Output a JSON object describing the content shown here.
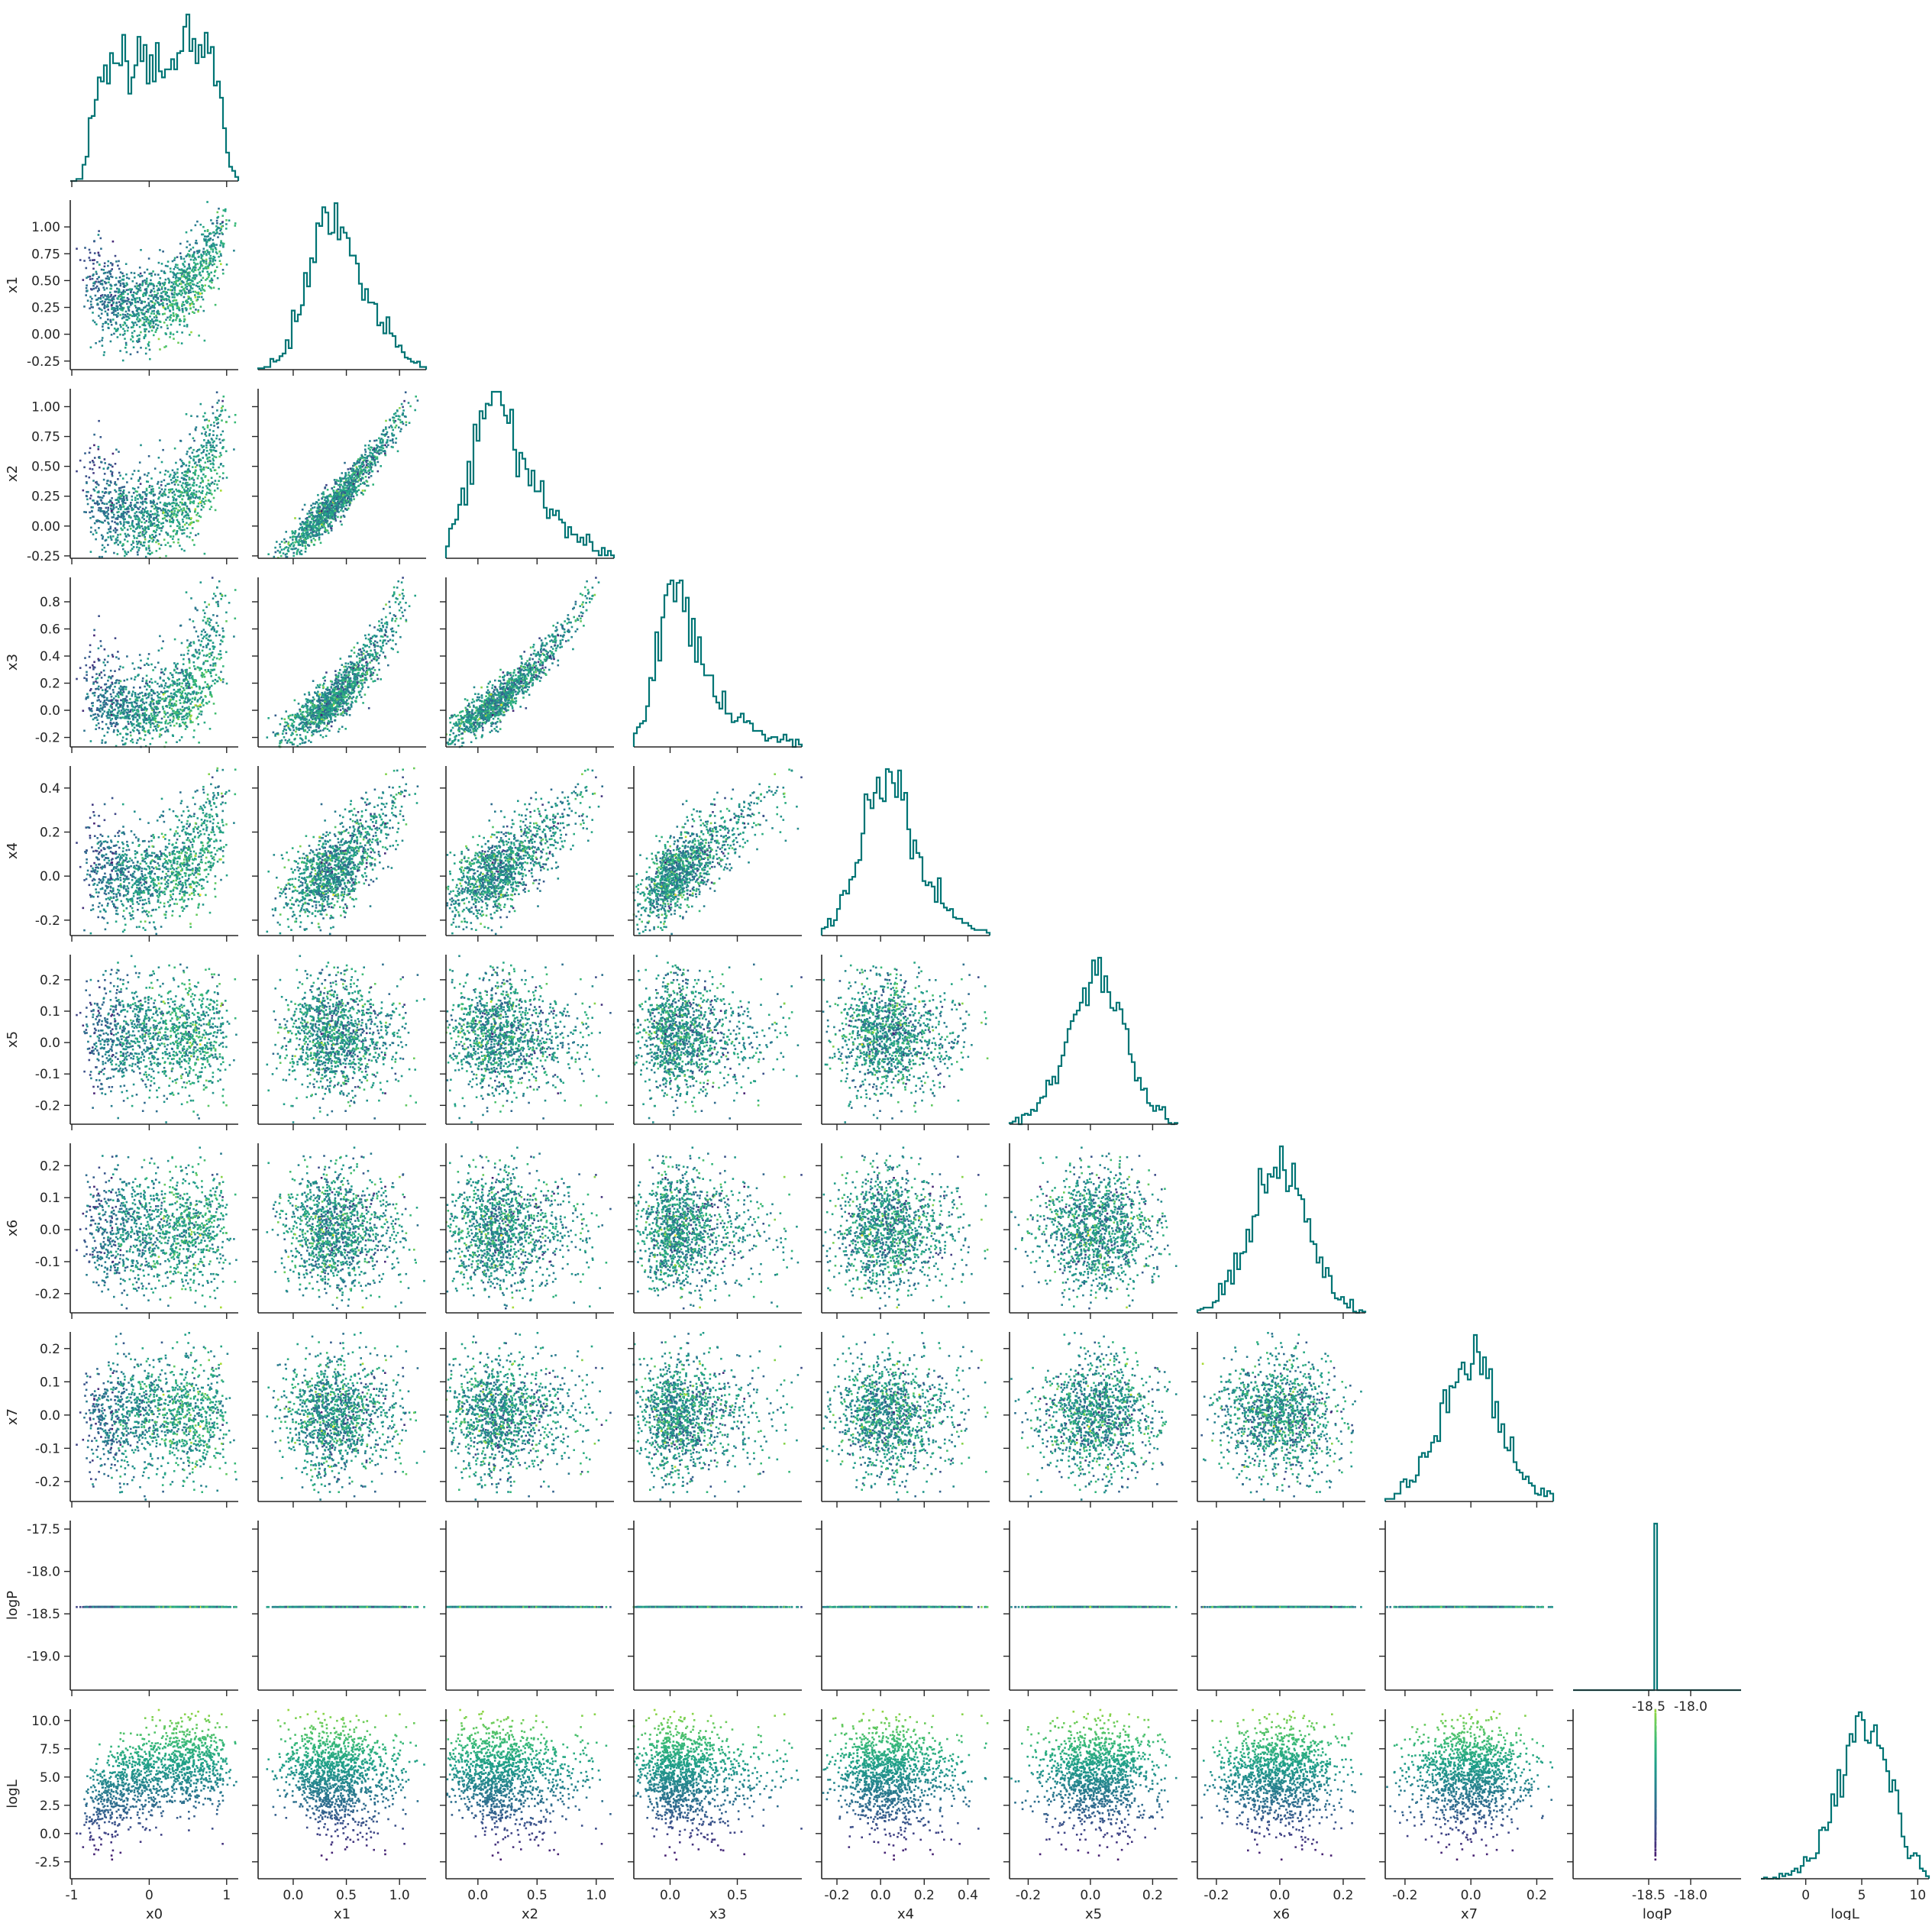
{
  "chart_data": {
    "type": "scatter",
    "title": "",
    "layout": "corner-pairplot",
    "variables": [
      "x0",
      "x1",
      "x2",
      "x3",
      "x4",
      "x5",
      "x6",
      "x7",
      "logP",
      "logL"
    ],
    "axis_ranges": {
      "x0": [
        -1.02,
        1.15
      ],
      "x1": [
        -0.33,
        1.25
      ],
      "x2": [
        -0.27,
        1.15
      ],
      "x3": [
        -0.27,
        0.98
      ],
      "x4": [
        -0.27,
        0.5
      ],
      "x5": [
        -0.26,
        0.28
      ],
      "x6": [
        -0.26,
        0.27
      ],
      "x7": [
        -0.26,
        0.25
      ],
      "logP": [
        -19.4,
        -17.4
      ],
      "logL": [
        -4.0,
        11.0
      ]
    },
    "ticks": {
      "x0": [
        "-1",
        "0",
        "1"
      ],
      "x1": [
        "-0.25",
        "0.00",
        "0.25",
        "0.50",
        "0.75",
        "1.00"
      ],
      "x2": [
        "-0.25",
        "0.00",
        "0.25",
        "0.50",
        "0.75",
        "1.00"
      ],
      "x3": [
        "-0.2",
        "0.0",
        "0.2",
        "0.4",
        "0.6",
        "0.8"
      ],
      "x4": [
        "-0.2",
        "0.0",
        "0.2",
        "0.4"
      ],
      "x5": [
        "-0.2",
        "-0.1",
        "0.0",
        "0.1",
        "0.2"
      ],
      "x6": [
        "-0.2",
        "-0.1",
        "0.0",
        "0.1",
        "0.2"
      ],
      "x7": [
        "-0.2",
        "-0.1",
        "0.0",
        "0.1",
        "0.2"
      ],
      "logP": [
        "-19.0",
        "-18.5",
        "-18.0",
        "-17.5"
      ],
      "logL": [
        "-2.5",
        "0.0",
        "2.5",
        "5.0",
        "7.5",
        "10.0"
      ]
    },
    "bottom_x_ticks": {
      "x0": [
        "-1",
        "0",
        "1"
      ],
      "x1": [
        "0.0",
        "0.5",
        "1.0"
      ],
      "x2": [
        "0.0",
        "0.5",
        "1.0"
      ],
      "x3": [
        "0.0",
        "0.5"
      ],
      "x4": [
        "-0.2",
        "0.0",
        "0.2",
        "0.4"
      ],
      "x5": [
        "-0.2",
        "0.0",
        "0.2"
      ],
      "x6": [
        "-0.2",
        "0.0",
        "0.2"
      ],
      "x7": [
        "-0.2",
        "0.0",
        "0.2"
      ],
      "logP": [
        "-18.5",
        "-18.0"
      ],
      "logL": [
        "0",
        "5",
        "10"
      ]
    },
    "marginals": {
      "x0": {
        "mean": 0.1,
        "sd": 0.5,
        "shape": "flat-top"
      },
      "x1": {
        "mean": 0.47,
        "sd": 0.22
      },
      "x2": {
        "mean": 0.24,
        "sd": 0.17
      },
      "x3": {
        "mean": 0.09,
        "sd": 0.13
      },
      "x4": {
        "mean": 0.03,
        "sd": 0.1
      },
      "x5": {
        "mean": 0.02,
        "sd": 0.09
      },
      "x6": {
        "mean": 0.0,
        "sd": 0.09
      },
      "x7": {
        "mean": 0.0,
        "sd": 0.09
      },
      "logP": {
        "value": -18.42
      },
      "logL": {
        "mean": 4.4,
        "sd": 2.4
      }
    },
    "n_points": 2600,
    "color_by": "logL",
    "colormap": "viridis",
    "histogram_color": "#007575",
    "grid": false,
    "legend": "none"
  }
}
